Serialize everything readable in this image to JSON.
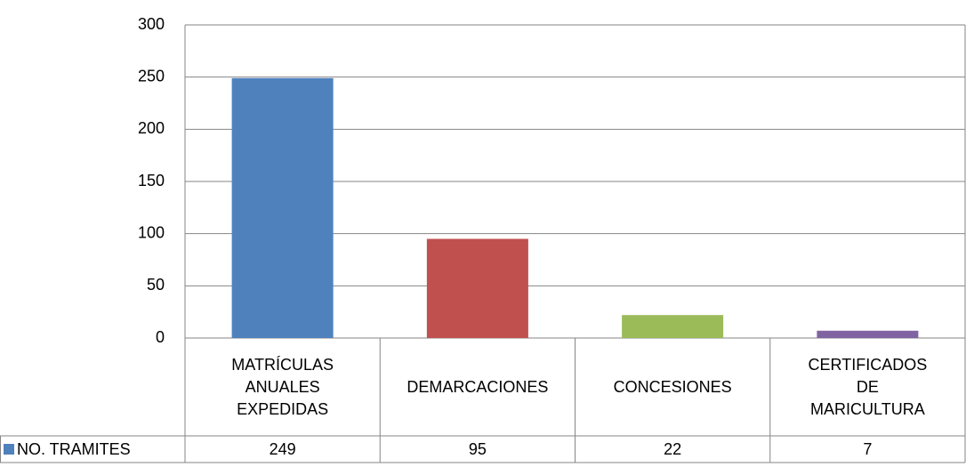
{
  "chart_data": {
    "type": "bar",
    "categories": [
      "MATRÍCULAS ANUALES EXPEDIDAS",
      "DEMARCACIONES",
      "CONCESIONES",
      "CERTIFICADOS DE MARICULTURA"
    ],
    "series": [
      {
        "name": "NO. TRAMITES",
        "color": "#4f81bd",
        "point_colors": [
          "#4f81bd",
          "#c0504d",
          "#9bbb59",
          "#8064a2"
        ],
        "values": [
          249,
          95,
          22,
          7
        ]
      }
    ],
    "ylim": [
      0,
      300
    ],
    "yticks": [
      0,
      50,
      100,
      150,
      200,
      250,
      300
    ],
    "grid": true,
    "data_table": true
  }
}
